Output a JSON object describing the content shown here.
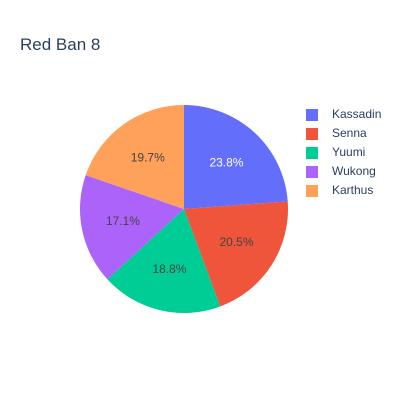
{
  "chart_data": {
    "type": "pie",
    "title": "Red Ban 8",
    "labels": [
      "Kassadin",
      "Senna",
      "Yuumi",
      "Wukong",
      "Karthus"
    ],
    "values": [
      23.8,
      20.5,
      18.8,
      17.1,
      19.7
    ],
    "display_labels": [
      "23.8%",
      "20.5%",
      "18.8%",
      "17.1%",
      "19.7%"
    ],
    "colors": [
      "#636efa",
      "#ef553b",
      "#00cc96",
      "#ab63fa",
      "#ffa15a"
    ],
    "text_colors": [
      "#ffffff",
      "#444444",
      "#444444",
      "#444444",
      "#444444"
    ],
    "legend_placement": "top-right",
    "legend_order": [
      0,
      1,
      2,
      3,
      4
    ]
  }
}
